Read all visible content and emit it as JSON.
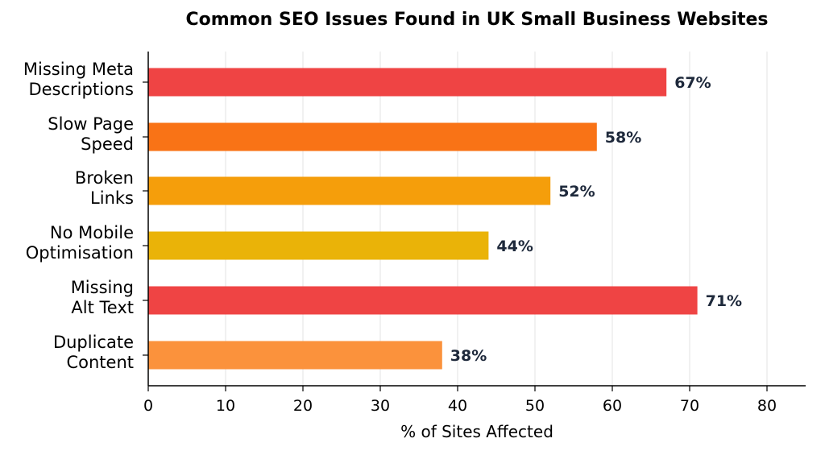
{
  "chart_data": {
    "type": "bar",
    "orientation": "horizontal",
    "title": "Common SEO Issues Found in UK Small Business Websites",
    "xlabel": "% of Sites Affected",
    "ylabel": "",
    "xlim": [
      0,
      85
    ],
    "xticks": [
      0,
      10,
      20,
      30,
      40,
      50,
      60,
      70,
      80
    ],
    "grid": "vertical",
    "categories": [
      [
        "Missing Meta",
        "Descriptions"
      ],
      [
        "Slow Page",
        "Speed"
      ],
      [
        "Broken",
        "Links"
      ],
      [
        "No Mobile",
        "Optimisation"
      ],
      [
        "Missing",
        "Alt Text"
      ],
      [
        "Duplicate",
        "Content"
      ]
    ],
    "values": [
      67,
      58,
      52,
      44,
      71,
      38
    ],
    "data_labels": [
      "67%",
      "58%",
      "52%",
      "44%",
      "71%",
      "38%"
    ],
    "bar_colors": [
      "#ef4444",
      "#f97316",
      "#f59e0b",
      "#eab308",
      "#ef4444",
      "#fb923c"
    ],
    "label_color": "#1e293b"
  }
}
